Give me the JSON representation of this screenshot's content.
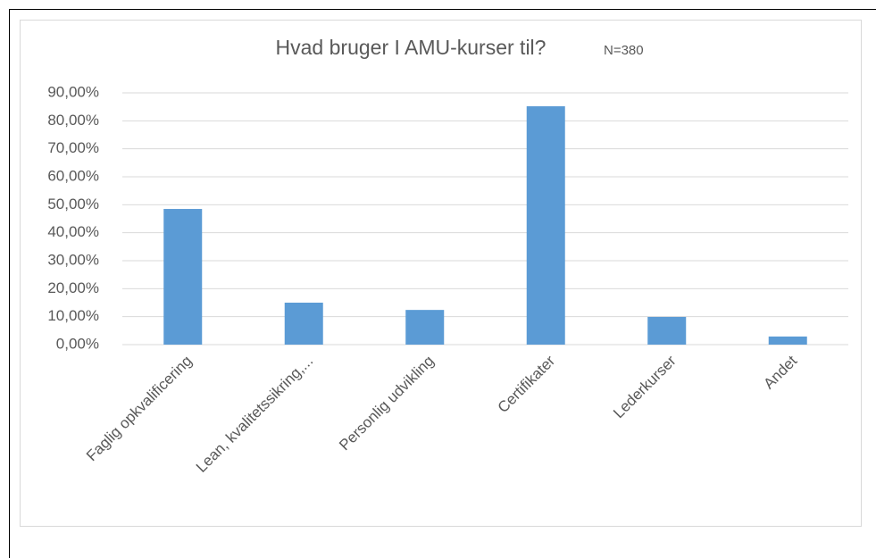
{
  "chart_data": {
    "type": "bar",
    "title": "Hvad bruger I  AMU-kurser til?",
    "subtitle": "N=380",
    "categories": [
      "Faglig opkvalificering",
      "Lean, kvalitetssikring,...",
      "Personlig udvikling",
      "Certifikater",
      "Lederkurser",
      "Andet"
    ],
    "values": [
      48.5,
      15.0,
      12.4,
      85.2,
      9.9,
      2.9
    ],
    "color": "#5b9bd5",
    "ylim": [
      0,
      90
    ],
    "yticks": [
      {
        "value": 0,
        "label": "0,00%"
      },
      {
        "value": 10,
        "label": "10,00%"
      },
      {
        "value": 20,
        "label": "20,00%"
      },
      {
        "value": 30,
        "label": "30,00%"
      },
      {
        "value": 40,
        "label": "40,00%"
      },
      {
        "value": 50,
        "label": "50,00%"
      },
      {
        "value": 60,
        "label": "60,00%"
      },
      {
        "value": 70,
        "label": "70,00%"
      },
      {
        "value": 80,
        "label": "80,00%"
      },
      {
        "value": 90,
        "label": "90,00%"
      }
    ],
    "grid": true
  }
}
